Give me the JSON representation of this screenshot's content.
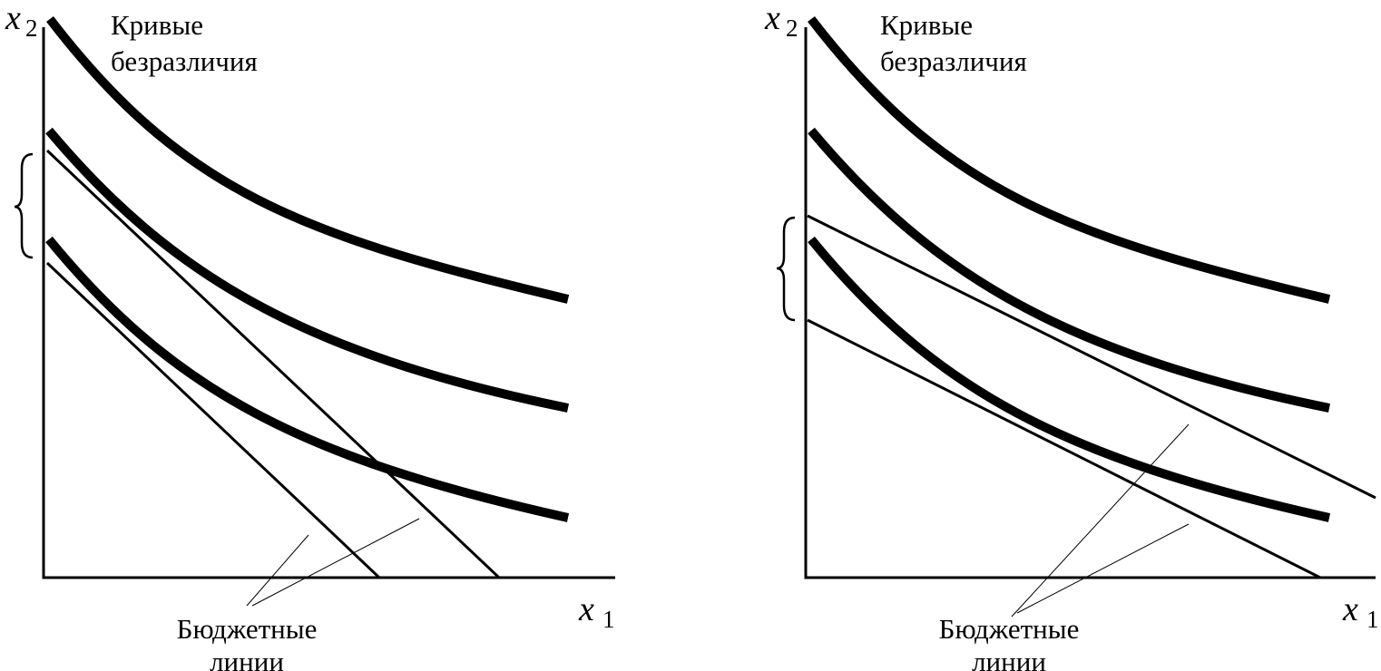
{
  "panels": [
    {
      "id": "left",
      "axis_y_var": "x",
      "axis_y_sub": "2",
      "axis_x_var": "x",
      "axis_x_sub": "1",
      "curves_label": [
        "Кривые",
        "безразличия"
      ],
      "budget_label": [
        "Бюджетные",
        "линии"
      ]
    },
    {
      "id": "right",
      "axis_y_var": "x",
      "axis_y_sub": "2",
      "axis_x_var": "x",
      "axis_x_sub": "1",
      "curves_label": [
        "Кривые",
        "безразличия"
      ],
      "budget_label": [
        "Бюджетные",
        "линии"
      ]
    }
  ],
  "indifference_curve_count": 3,
  "budget_line_count": 2
}
